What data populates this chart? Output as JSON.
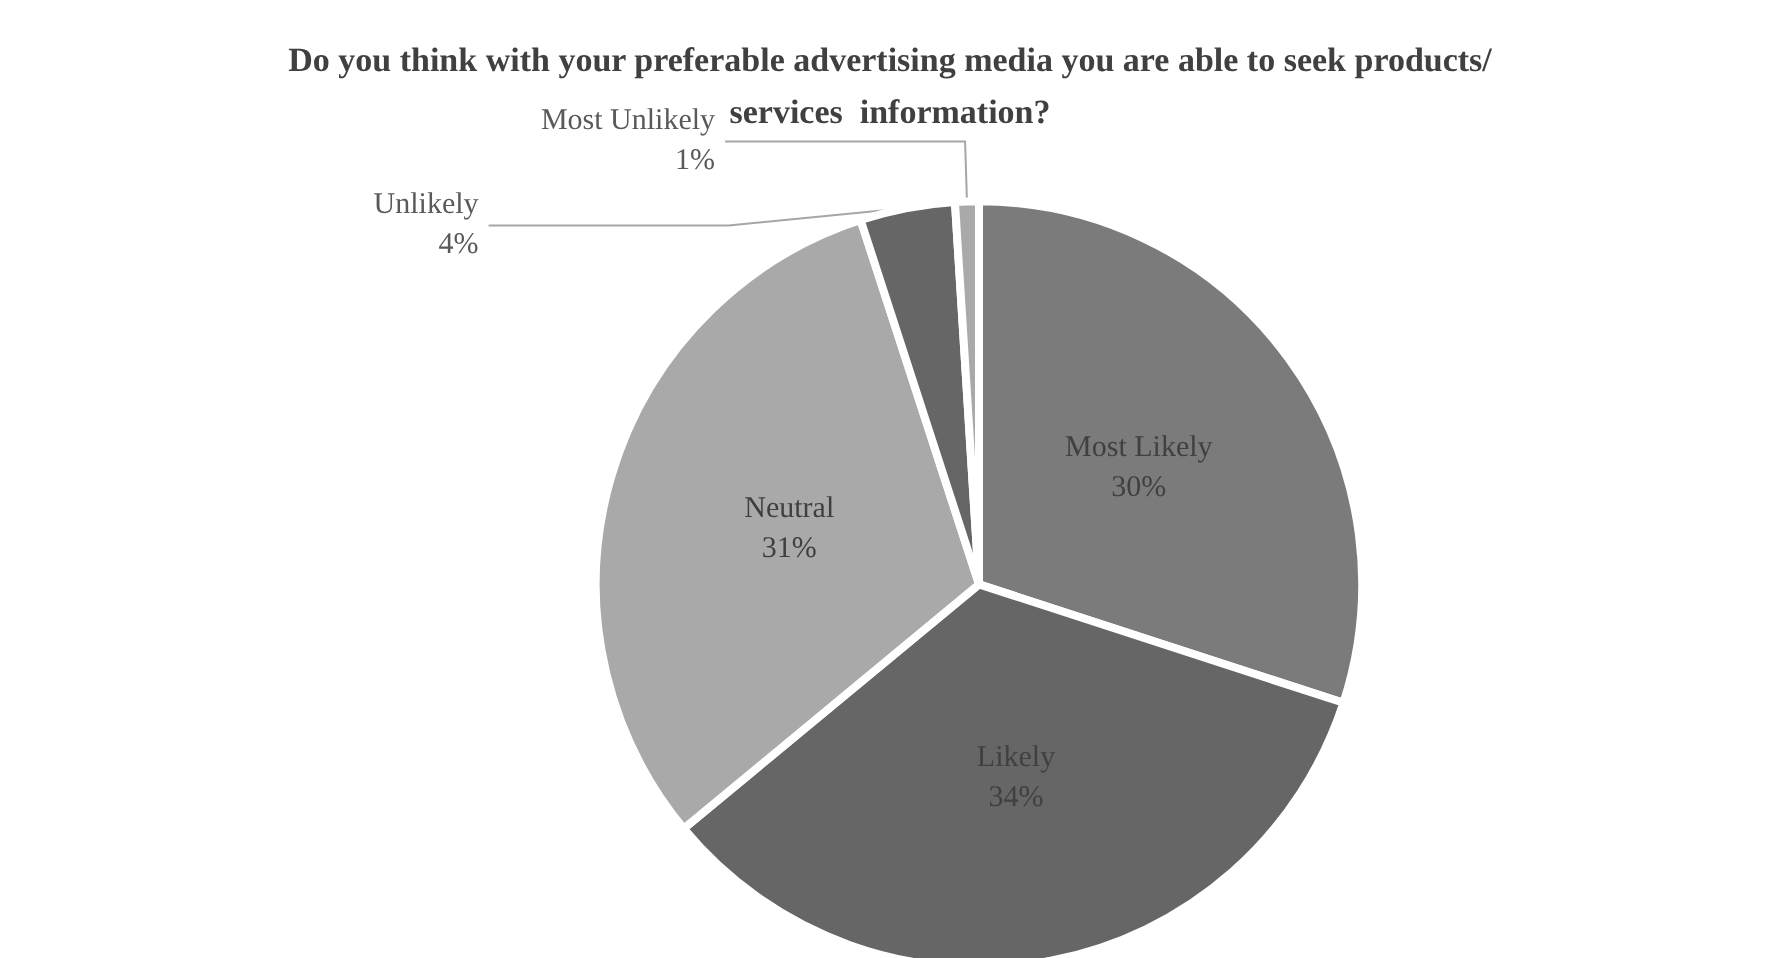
{
  "chart_data": {
    "type": "pie",
    "title": "Do you think with your preferable advertising media you are able to seek products/services  information?",
    "categories": [
      "Most Likely",
      "Likely",
      "Neutral",
      "Unlikely",
      "Most Unlikely"
    ],
    "values": [
      30,
      34,
      31,
      4,
      1
    ],
    "value_labels": [
      "30%",
      "34%",
      "31%",
      "4%",
      "1%"
    ],
    "colors": [
      "#7b7b7b",
      "#666666",
      "#a9a9a9",
      "#666666",
      "#a9a9a9"
    ],
    "legend": false
  }
}
